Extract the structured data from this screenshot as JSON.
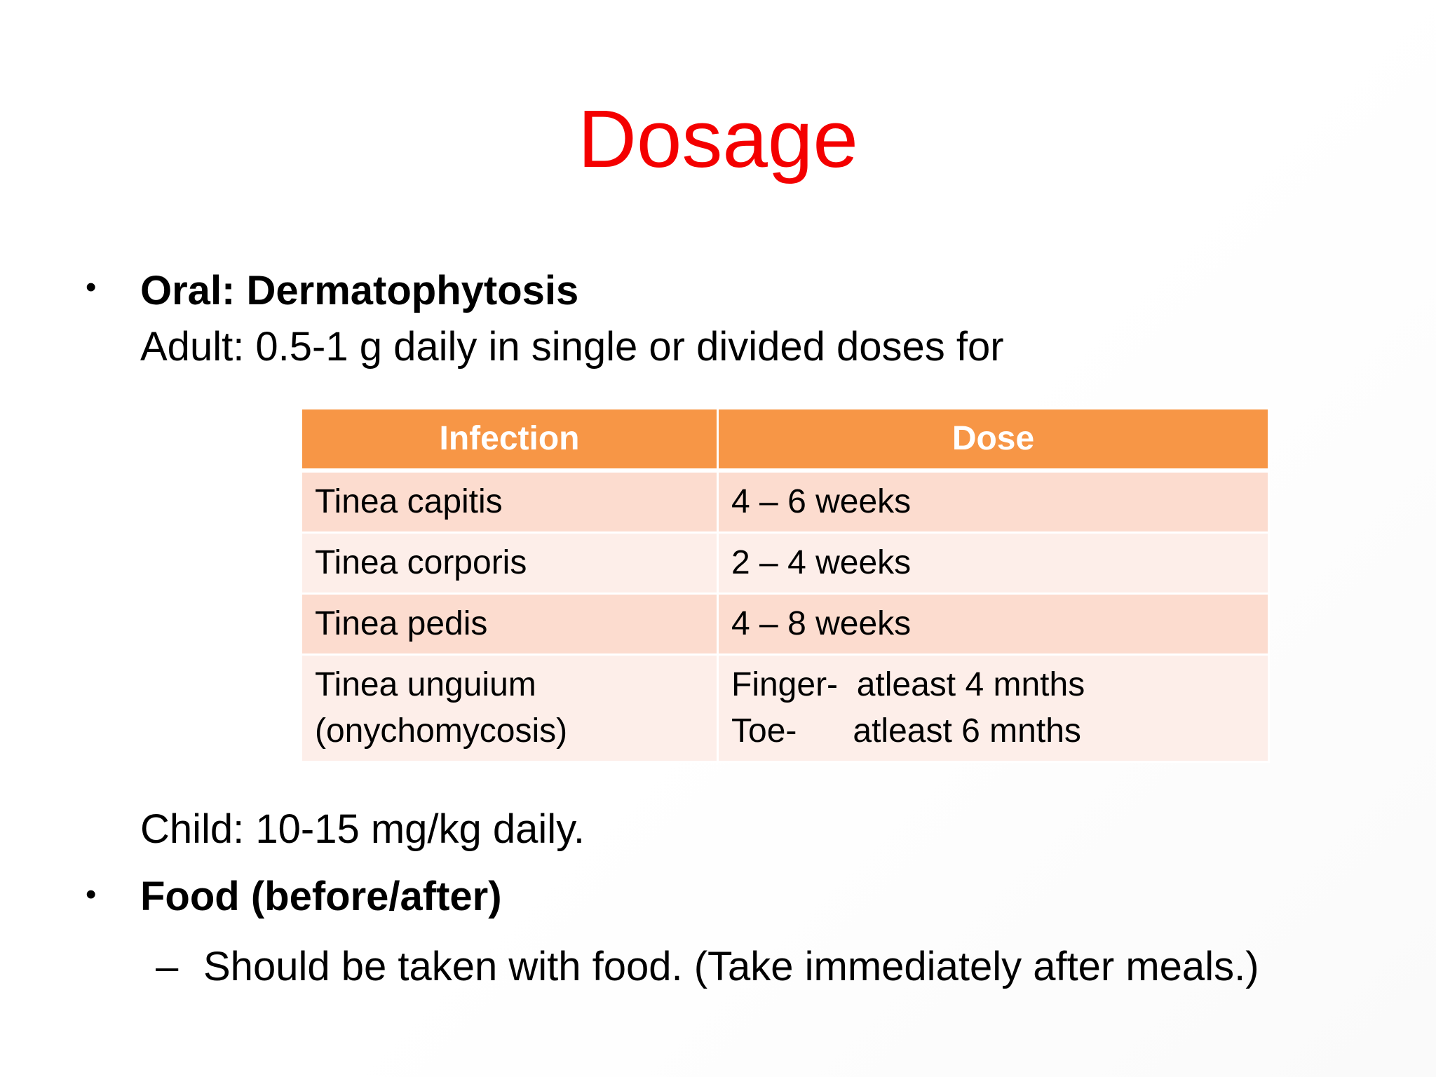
{
  "slide": {
    "title": "Dosage"
  },
  "bullets": [
    {
      "marker": "•",
      "heading": "Oral: Dermatophytosis",
      "line": "Adult: 0.5-1 g daily in single or divided doses for"
    },
    {
      "marker": "•",
      "heading": "Food (before/after)"
    }
  ],
  "child_line": "Child: 10-15 mg/kg daily.",
  "sub_bullet": {
    "marker": "–",
    "text": "Should be taken with food. (Take immediately after meals.)"
  },
  "table": {
    "headers": [
      "Infection",
      "Dose"
    ],
    "rows": [
      {
        "infection": [
          "Tinea capitis"
        ],
        "dose": [
          "4 – 6 weeks"
        ]
      },
      {
        "infection": [
          "Tinea corporis"
        ],
        "dose": [
          "2 – 4 weeks"
        ]
      },
      {
        "infection": [
          "Tinea pedis"
        ],
        "dose": [
          "4 – 8 weeks"
        ]
      },
      {
        "infection": [
          "Tinea unguium",
          "(onychomycosis)"
        ],
        "dose": [
          "Finger-  atleast 4 mnths",
          "Toe-      atleast 6 mnths"
        ]
      }
    ]
  },
  "colors": {
    "title": "#f40000",
    "table_header": "#f79646",
    "row_dark": "#fcdccf",
    "row_light": "#fdeee9"
  }
}
